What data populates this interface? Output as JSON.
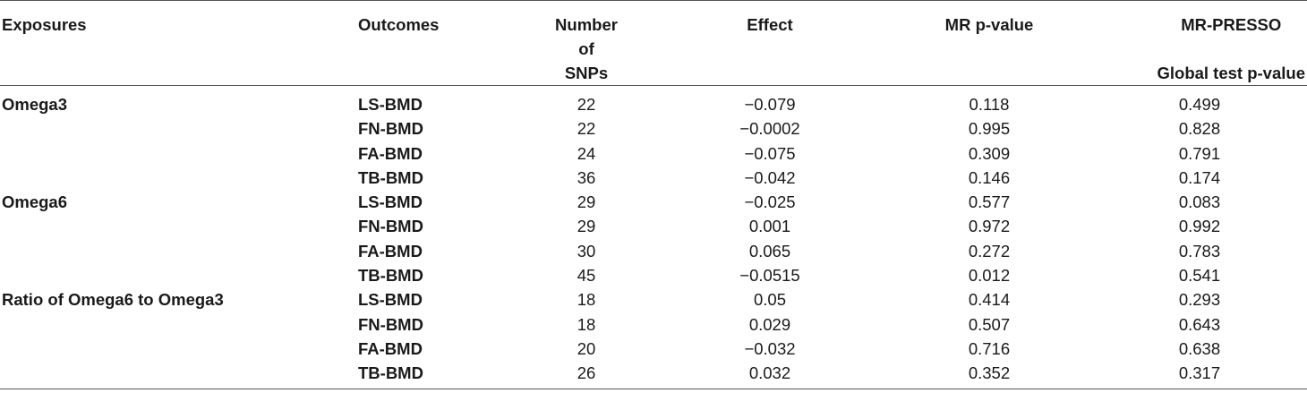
{
  "header": {
    "exposures": "Exposures",
    "outcomes": "Outcomes",
    "snps_line1": "Number",
    "snps_line2": "of",
    "snps_line3": "SNPs",
    "effect": "Effect",
    "mr_pvalue": "MR p-value",
    "presso_line1": "MR-PRESSO",
    "presso_line2": "Global test p-value"
  },
  "rows": [
    {
      "exposure": "Omega3",
      "outcome": "LS-BMD",
      "snps": "22",
      "effect": "−0.079",
      "mr_p": "0.118",
      "presso_p": "0.499"
    },
    {
      "exposure": "",
      "outcome": "FN-BMD",
      "snps": "22",
      "effect": "−0.0002",
      "mr_p": "0.995",
      "presso_p": "0.828"
    },
    {
      "exposure": "",
      "outcome": "FA-BMD",
      "snps": "24",
      "effect": "−0.075",
      "mr_p": "0.309",
      "presso_p": "0.791"
    },
    {
      "exposure": "",
      "outcome": "TB-BMD",
      "snps": "36",
      "effect": "−0.042",
      "mr_p": "0.146",
      "presso_p": "0.174"
    },
    {
      "exposure": "Omega6",
      "outcome": "LS-BMD",
      "snps": "29",
      "effect": "−0.025",
      "mr_p": "0.577",
      "presso_p": "0.083"
    },
    {
      "exposure": "",
      "outcome": "FN-BMD",
      "snps": "29",
      "effect": "0.001",
      "mr_p": "0.972",
      "presso_p": "0.992"
    },
    {
      "exposure": "",
      "outcome": "FA-BMD",
      "snps": "30",
      "effect": "0.065",
      "mr_p": "0.272",
      "presso_p": "0.783"
    },
    {
      "exposure": "",
      "outcome": "TB-BMD",
      "snps": "45",
      "effect": "−0.0515",
      "mr_p": "0.012",
      "presso_p": "0.541"
    },
    {
      "exposure": "Ratio of Omega6 to Omega3",
      "outcome": "LS-BMD",
      "snps": "18",
      "effect": "0.05",
      "mr_p": "0.414",
      "presso_p": "0.293"
    },
    {
      "exposure": "",
      "outcome": "FN-BMD",
      "snps": "18",
      "effect": "0.029",
      "mr_p": "0.507",
      "presso_p": "0.643"
    },
    {
      "exposure": "",
      "outcome": "FA-BMD",
      "snps": "20",
      "effect": "−0.032",
      "mr_p": "0.716",
      "presso_p": "0.638"
    },
    {
      "exposure": "",
      "outcome": "TB-BMD",
      "snps": "26",
      "effect": "0.032",
      "mr_p": "0.352",
      "presso_p": "0.317"
    }
  ]
}
